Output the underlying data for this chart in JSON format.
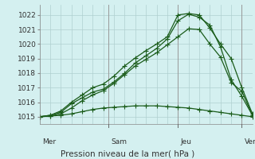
{
  "xlabel": "Pression niveau de la mer( hPa )",
  "background_color": "#d4f0f0",
  "grid_color": "#b0d0d0",
  "line_color": "#1a5c1a",
  "ylim": [
    1014.5,
    1022.7
  ],
  "yticks": [
    1015,
    1016,
    1017,
    1018,
    1019,
    1020,
    1021,
    1022
  ],
  "day_labels": [
    "Mer",
    "Sam",
    "Jeu",
    "Ven"
  ],
  "line1_x": [
    0,
    1,
    2,
    3,
    4,
    5,
    6,
    7,
    8,
    9,
    10,
    11,
    12,
    13,
    14,
    15,
    16,
    17,
    18,
    19,
    20
  ],
  "line1_y": [
    1015.0,
    1015.1,
    1015.3,
    1015.9,
    1016.3,
    1016.7,
    1016.9,
    1017.4,
    1018.0,
    1018.7,
    1019.2,
    1019.7,
    1020.35,
    1021.6,
    1022.05,
    1021.85,
    1021.3,
    1019.8,
    1017.55,
    1016.4,
    1015.1
  ],
  "line2_x": [
    0,
    1,
    2,
    3,
    4,
    5,
    6,
    7,
    8,
    9,
    10,
    11,
    12,
    13,
    14,
    15,
    16,
    17,
    18,
    19,
    20
  ],
  "line2_y": [
    1015.0,
    1015.1,
    1015.4,
    1016.0,
    1016.5,
    1017.0,
    1017.25,
    1017.8,
    1018.5,
    1019.05,
    1019.55,
    1020.0,
    1020.5,
    1022.0,
    1022.1,
    1022.0,
    1021.1,
    1020.0,
    1019.0,
    1017.0,
    1015.2
  ],
  "line3_x": [
    0,
    1,
    2,
    3,
    4,
    5,
    6,
    7,
    8,
    9,
    10,
    11,
    12,
    13,
    14,
    15,
    16,
    17,
    18,
    19,
    20
  ],
  "line3_y": [
    1015.0,
    1015.05,
    1015.2,
    1015.6,
    1016.1,
    1016.5,
    1016.8,
    1017.3,
    1017.9,
    1018.5,
    1018.95,
    1019.4,
    1019.95,
    1020.5,
    1021.05,
    1021.0,
    1020.0,
    1019.1,
    1017.35,
    1016.75,
    1015.1
  ],
  "line4_x": [
    0,
    1,
    2,
    3,
    4,
    5,
    6,
    7,
    8,
    9,
    10,
    11,
    12,
    13,
    14,
    15,
    16,
    17,
    18,
    19,
    20
  ],
  "line4_y": [
    1015.0,
    1015.05,
    1015.1,
    1015.2,
    1015.35,
    1015.5,
    1015.6,
    1015.65,
    1015.7,
    1015.75,
    1015.75,
    1015.75,
    1015.7,
    1015.65,
    1015.6,
    1015.5,
    1015.4,
    1015.3,
    1015.2,
    1015.1,
    1015.0
  ]
}
